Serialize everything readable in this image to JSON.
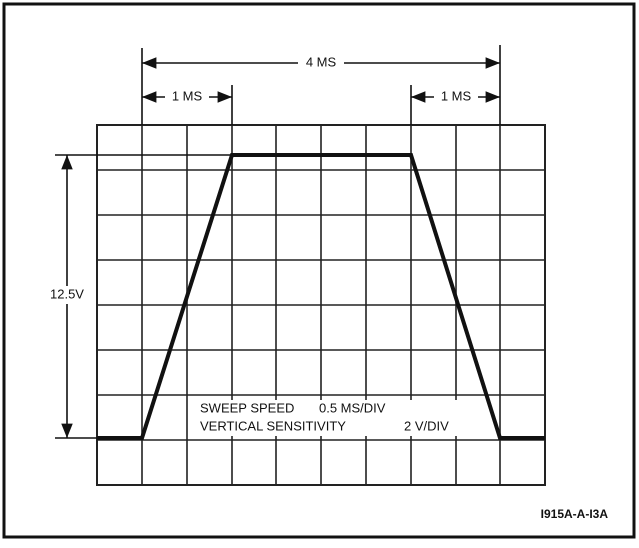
{
  "dimensions": {
    "total_width": "4 MS",
    "rise_time": "1 MS",
    "fall_time": "1 MS",
    "amplitude": "12.5V"
  },
  "settings": {
    "sweep_label": "SWEEP SPEED",
    "sweep_value": "0.5 MS/DIV",
    "sensitivity_label": "VERTICAL SENSITIVITY",
    "sensitivity_value": "2 V/DIV"
  },
  "figure_id": "I915A-A-I3A"
}
